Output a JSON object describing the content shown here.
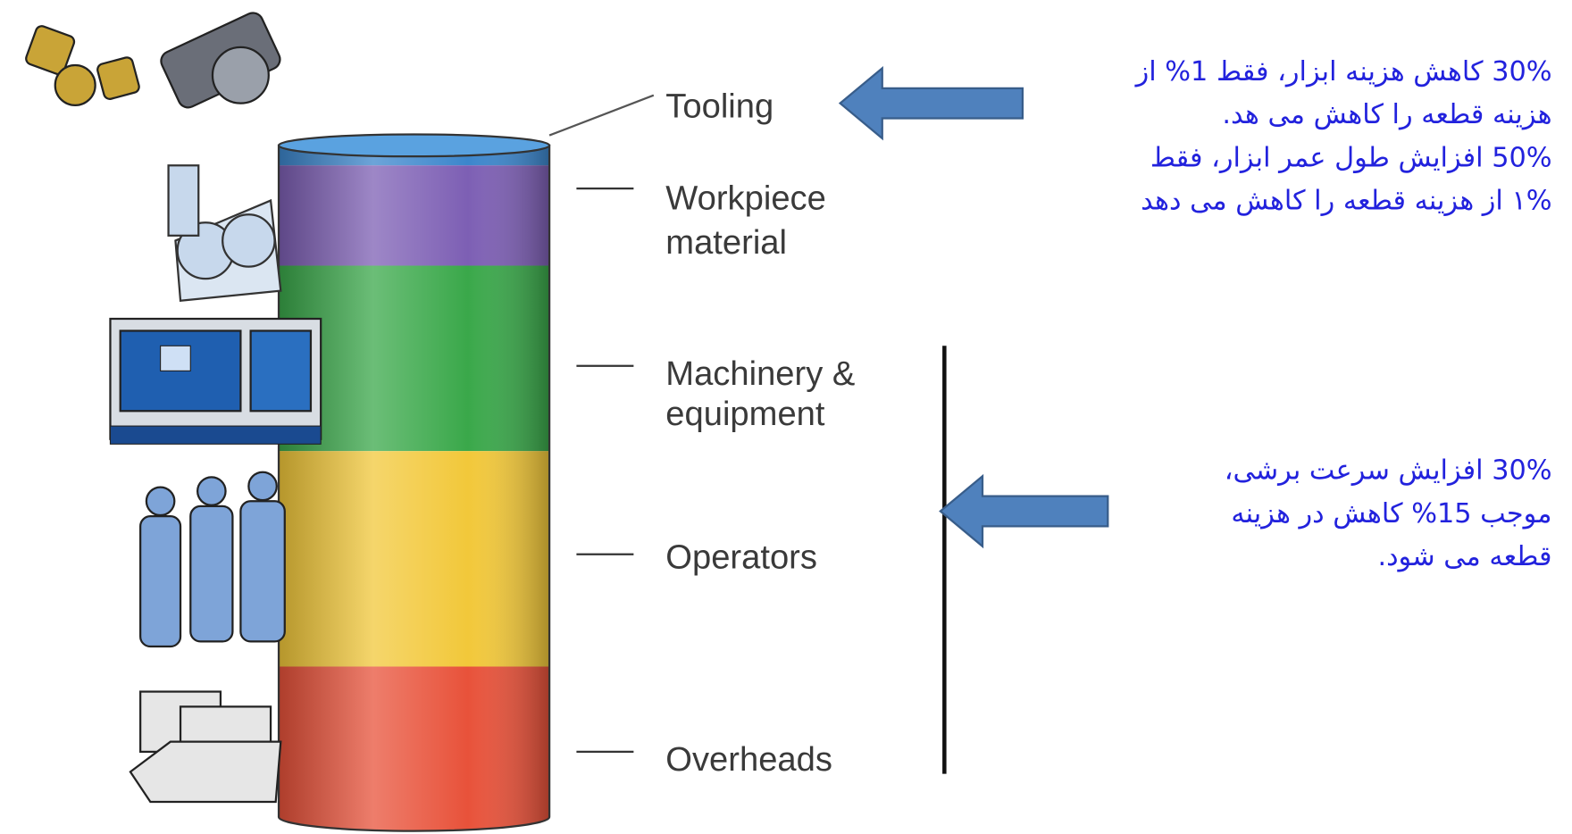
{
  "segments": [
    {
      "label": [
        "Tooling"
      ]
    },
    {
      "label": [
        "Workpiece",
        "material"
      ]
    },
    {
      "label": [
        "Machinery &",
        "equipment"
      ]
    },
    {
      "label": [
        "Operators"
      ]
    },
    {
      "label": [
        "Overheads"
      ]
    }
  ],
  "annotations": [
    {
      "lines": [
        "30% کاهش هزینه ابزار، فقط 1% از",
        "هزینه قطعه را کاهش می هد.",
        "50% افزایش طول عمر ابزار، فقط",
        "۱% از هزینه قطعه را کاهش می دهد"
      ]
    },
    {
      "lines": [
        "30% افزایش سرعت برشی،",
        "موجب 15% کاهش در هزینه",
        "قطعه می شود."
      ]
    }
  ]
}
